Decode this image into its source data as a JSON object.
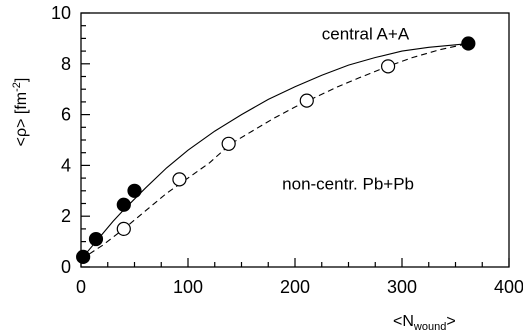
{
  "chart_data": {
    "type": "scatter",
    "title": "",
    "xlabel_main": "<N",
    "xlabel_sub": "wound",
    "xlabel_end": ">",
    "ylabel_main": "<ρ> [fm",
    "ylabel_sup": "-2",
    "ylabel_end": "]",
    "xlim": [
      0,
      400
    ],
    "ylim": [
      0,
      10
    ],
    "x_ticks": [
      0,
      100,
      200,
      300,
      400
    ],
    "y_ticks": [
      0,
      2,
      4,
      6,
      8,
      10
    ],
    "grid": false,
    "annotations": [
      {
        "text": "central A+A",
        "x": 225,
        "y": 8.95
      },
      {
        "text": "non-centr. Pb+Pb",
        "x": 188,
        "y": 3.05
      }
    ],
    "series": [
      {
        "marker": "filled-circle",
        "points": [
          {
            "x": 2,
            "y": 0.4
          },
          {
            "x": 14,
            "y": 1.1
          },
          {
            "x": 40,
            "y": 2.45
          },
          {
            "x": 50,
            "y": 3.0
          },
          {
            "x": 362,
            "y": 8.8
          }
        ]
      },
      {
        "marker": "open-circle",
        "points": [
          {
            "x": 40,
            "y": 1.5
          },
          {
            "x": 92,
            "y": 3.45
          },
          {
            "x": 138,
            "y": 4.85
          },
          {
            "x": 211,
            "y": 6.55
          },
          {
            "x": 287,
            "y": 7.9
          }
        ]
      }
    ],
    "curves": [
      {
        "style": "solid",
        "points": [
          [
            0,
            0.3
          ],
          [
            10,
            0.8
          ],
          [
            20,
            1.3
          ],
          [
            30,
            1.8
          ],
          [
            40,
            2.25
          ],
          [
            60,
            3.1
          ],
          [
            80,
            3.9
          ],
          [
            100,
            4.6
          ],
          [
            125,
            5.35
          ],
          [
            150,
            6.0
          ],
          [
            175,
            6.6
          ],
          [
            200,
            7.1
          ],
          [
            225,
            7.55
          ],
          [
            250,
            7.95
          ],
          [
            275,
            8.25
          ],
          [
            300,
            8.5
          ],
          [
            325,
            8.65
          ],
          [
            350,
            8.75
          ],
          [
            362,
            8.8
          ]
        ]
      },
      {
        "style": "dashed",
        "points": [
          [
            0,
            0.3
          ],
          [
            20,
            0.85
          ],
          [
            40,
            1.5
          ],
          [
            60,
            2.2
          ],
          [
            80,
            2.9
          ],
          [
            100,
            3.5
          ],
          [
            120,
            4.1
          ],
          [
            140,
            4.85
          ],
          [
            160,
            5.35
          ],
          [
            180,
            5.85
          ],
          [
            200,
            6.3
          ],
          [
            220,
            6.7
          ],
          [
            240,
            7.1
          ],
          [
            260,
            7.45
          ],
          [
            287,
            7.9
          ],
          [
            310,
            8.25
          ],
          [
            335,
            8.55
          ],
          [
            362,
            8.8
          ]
        ]
      }
    ]
  }
}
